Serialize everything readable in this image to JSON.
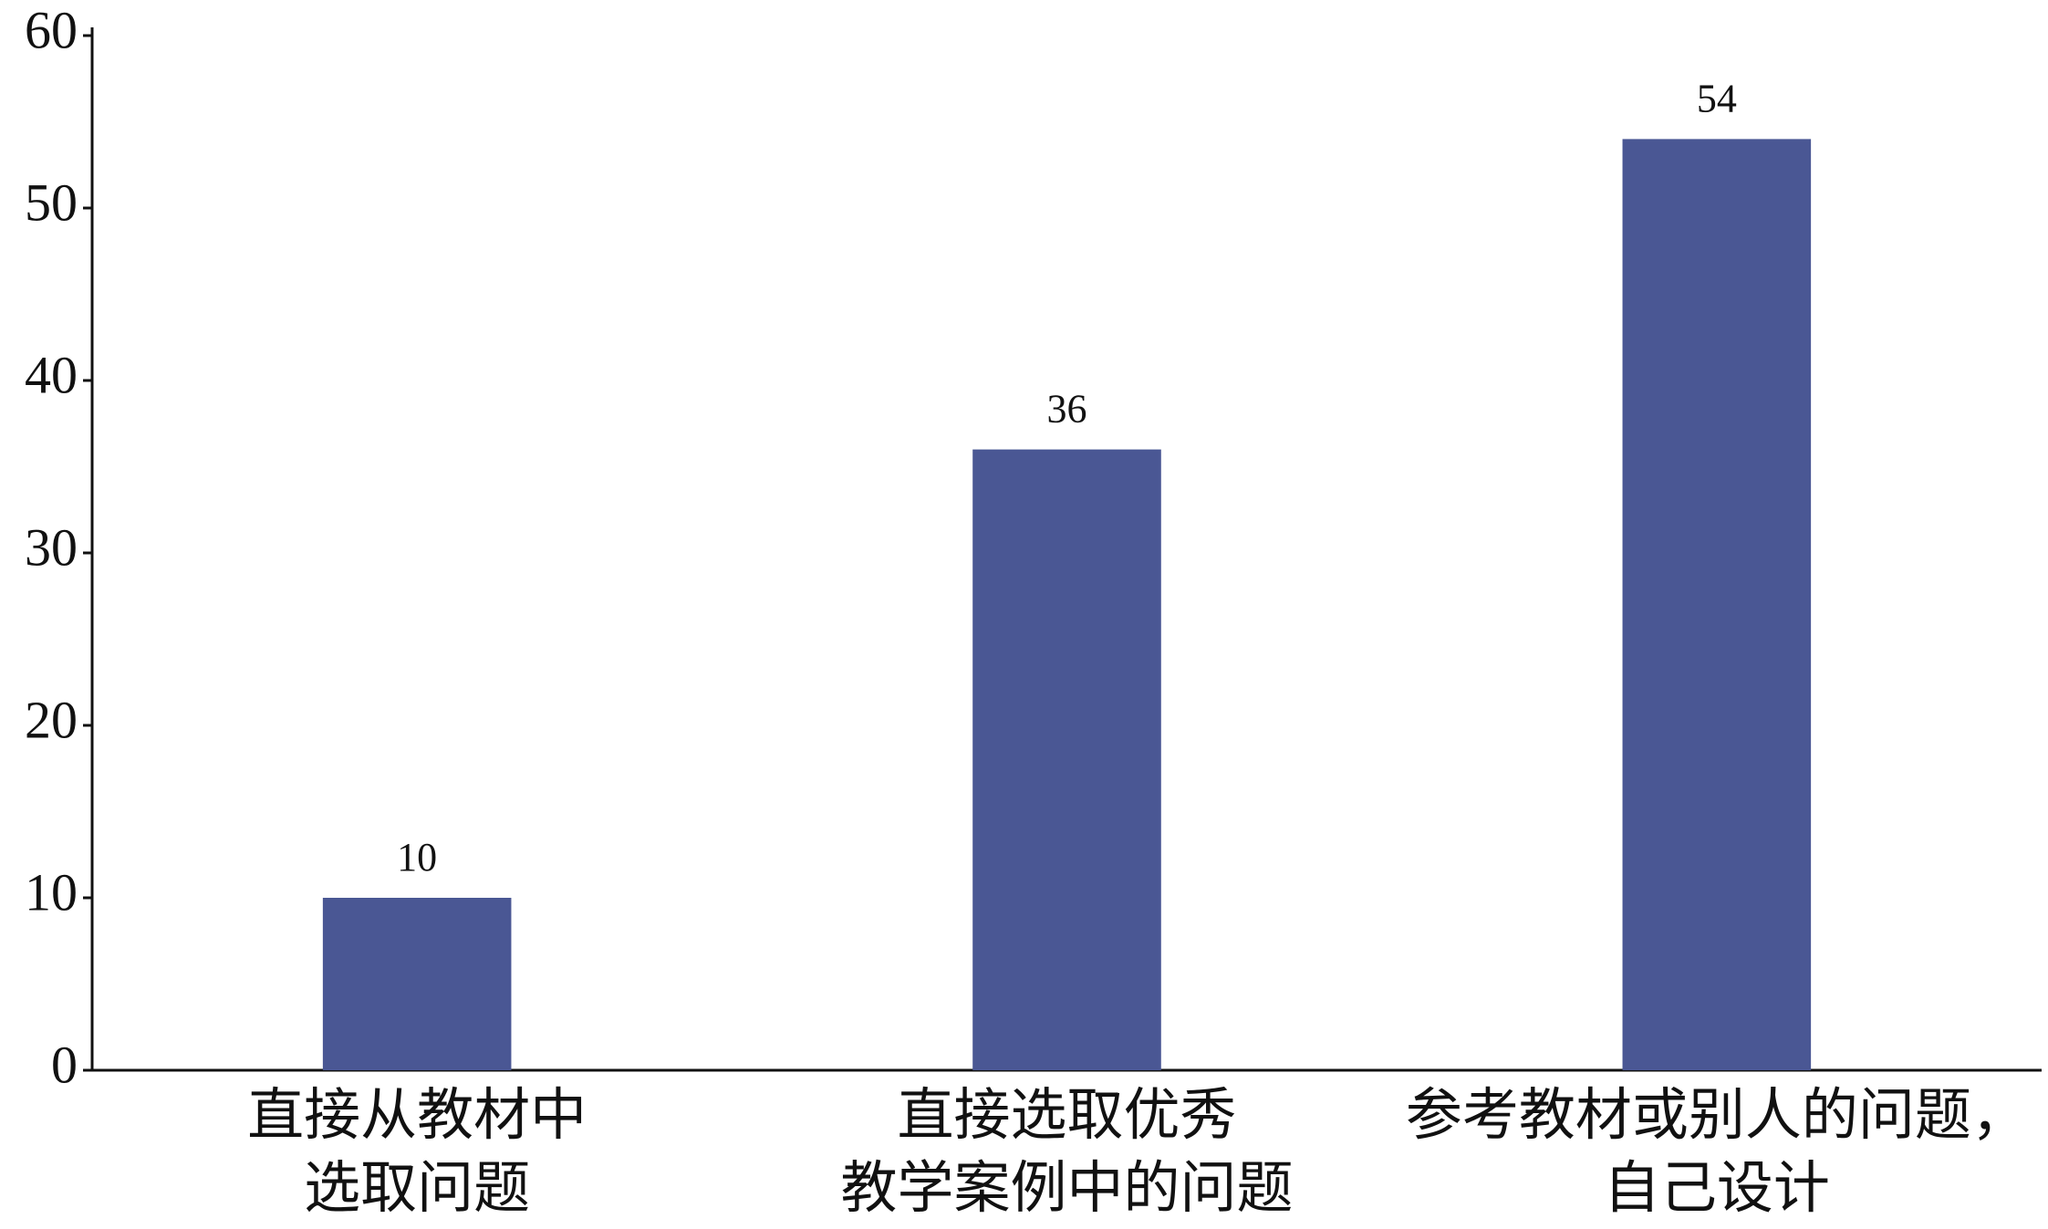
{
  "chart_data": {
    "type": "bar",
    "categories": [
      [
        "直接从教材中",
        "选取问题"
      ],
      [
        "直接选取优秀",
        "教学案例中的问题"
      ],
      [
        "参考教材或别人的问题，",
        "自己设计"
      ]
    ],
    "values": [
      10,
      36,
      54
    ],
    "color": "#4a5794",
    "ylim": [
      0,
      60
    ],
    "yticks": [
      0,
      10,
      20,
      30,
      40,
      50,
      60
    ],
    "grid": false
  }
}
